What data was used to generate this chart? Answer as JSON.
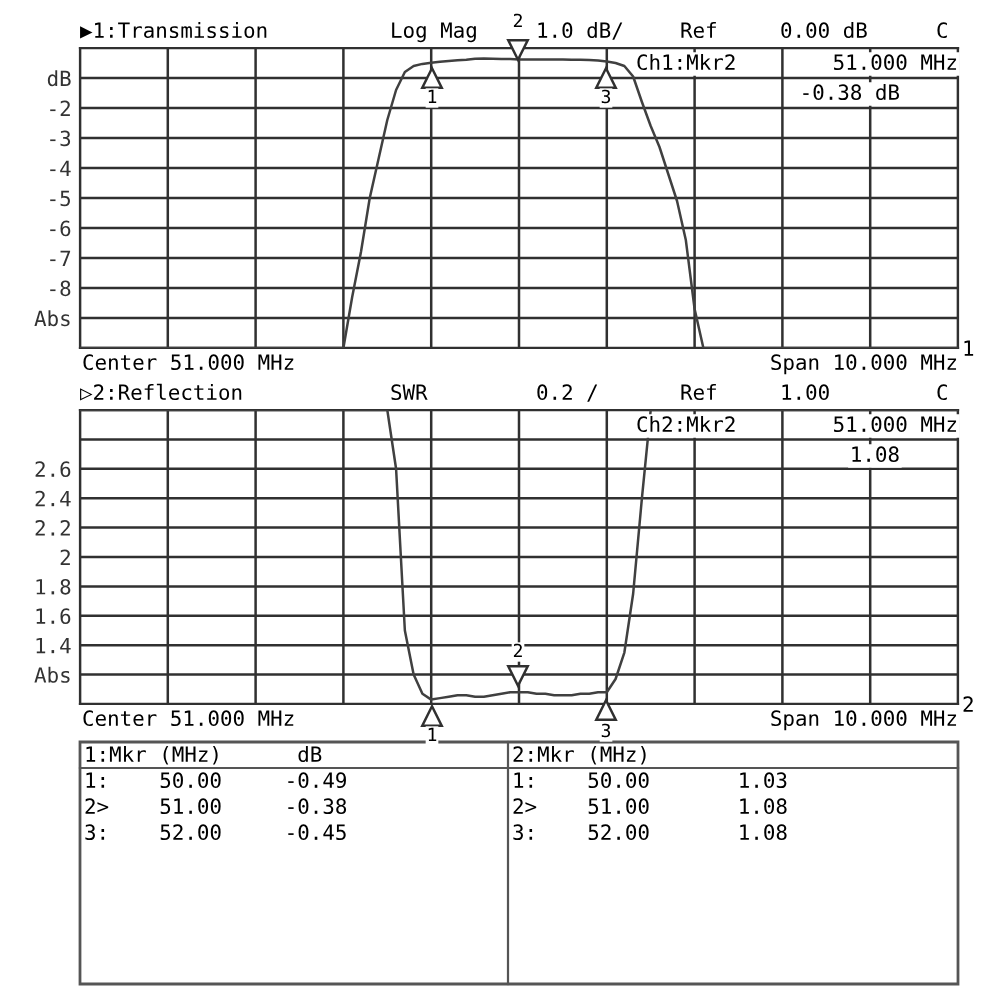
{
  "chart_data": [
    {
      "type": "line",
      "title": "▶1:Transmission",
      "categories": [
        null,
        null,
        null,
        null,
        null,
        null,
        null,
        null,
        null,
        null,
        null,
        null,
        null,
        null,
        null,
        null,
        null,
        null,
        null,
        null,
        null,
        null,
        null,
        null,
        null,
        null,
        null,
        null,
        null,
        null,
        null,
        null,
        null,
        null,
        null,
        null,
        null,
        null,
        null,
        null,
        null,
        null,
        null,
        null,
        null,
        null,
        null,
        null,
        null,
        null,
        null,
        null,
        null,
        null,
        null,
        null,
        null,
        null,
        null,
        null,
        null,
        null,
        null,
        null,
        null,
        null,
        null,
        null,
        null,
        null,
        null,
        null,
        null,
        null,
        null,
        null,
        null,
        null,
        null,
        null,
        null,
        null,
        null,
        null,
        null,
        null,
        null,
        null,
        null,
        null,
        null,
        null,
        null,
        null,
        null,
        null,
        null,
        null,
        null,
        null,
        null
      ],
      "series": [
        {
          "color": "#404040",
          "values": [
            -10,
            -10,
            -10,
            -10,
            -10,
            -10,
            -10,
            -10,
            -10,
            -10,
            -10,
            -10,
            -10,
            -10,
            -10,
            -10,
            -10,
            -10,
            -10,
            -10,
            -10,
            -10,
            -10,
            -10,
            -10,
            -10,
            -10,
            -10,
            -10,
            -10,
            -10,
            -8.3,
            -6.8,
            -5,
            -3.7,
            -2.4,
            -1.4,
            -0.8,
            -0.6,
            -0.53,
            -0.49,
            -0.46,
            -0.43,
            -0.41,
            -0.39,
            -0.36,
            -0.35,
            -0.36,
            -0.37,
            -0.37,
            -0.38,
            -0.38,
            -0.38,
            -0.38,
            -0.38,
            -0.38,
            -0.39,
            -0.39,
            -0.4,
            -0.42,
            -0.45,
            -0.5,
            -0.6,
            -0.95,
            -1.8,
            -2.6,
            -3.3,
            -4.2,
            -5.1,
            -6.4,
            -8.7,
            -10,
            -10,
            -10,
            -10,
            -10,
            -10,
            -10,
            -10,
            -10,
            -10,
            -10,
            -10,
            -10,
            -10,
            -10,
            -10,
            -10,
            -10,
            -10,
            -10,
            -10,
            -10,
            -10,
            -10,
            -10,
            -10,
            -10,
            -10,
            -10,
            -10
          ]
        }
      ],
      "ylim": [
        -10,
        0
      ],
      "yticks": [
        {
          "value": 0,
          "label": null
        },
        {
          "value": -1,
          "label": "dB"
        },
        -2,
        -3,
        -4,
        -5,
        -6,
        -7,
        -8,
        {
          "value": -9,
          "label": "Abs"
        },
        {
          "value": -10,
          "label": null
        }
      ],
      "tick_labels": "y",
      "grid": true,
      "line_style": "solid",
      "annotations": [
        "Log Mag",
        "1.0 dB/",
        "Ref",
        "0.00 dB",
        "C",
        "Ch1:Mkr2",
        "51.000 MHz",
        "-0.38 dB",
        "Center 51.000 MHz",
        "Span 10.000 MHz",
        "1",
        "1",
        "2",
        "3"
      ]
    },
    {
      "type": "line",
      "title": "▷2:Reflection",
      "categories": [
        null,
        null,
        null,
        null,
        null,
        null,
        null,
        null,
        null,
        null,
        null,
        null,
        null,
        null,
        null,
        null,
        null,
        null,
        null,
        null,
        null,
        null,
        null,
        null,
        null,
        null,
        null,
        null,
        null,
        null,
        null,
        null,
        null,
        null,
        null,
        null,
        null,
        null,
        null,
        null,
        null,
        null,
        null,
        null,
        null,
        null,
        null,
        null,
        null,
        null,
        null,
        null,
        null,
        null,
        null,
        null,
        null,
        null,
        null,
        null,
        null,
        null,
        null,
        null,
        null,
        null,
        null,
        null,
        null,
        null,
        null,
        null,
        null,
        null,
        null,
        null,
        null,
        null,
        null,
        null,
        null,
        null,
        null,
        null,
        null,
        null,
        null,
        null,
        null,
        null,
        null,
        null,
        null,
        null,
        null,
        null,
        null,
        null,
        null,
        null,
        null
      ],
      "series": [
        {
          "color": "#404040",
          "values": [
            3,
            3,
            3,
            3,
            3,
            3,
            3,
            3,
            3,
            3,
            3,
            3,
            3,
            3,
            3,
            3,
            3,
            3,
            3,
            3,
            3,
            3,
            3,
            3,
            3,
            3,
            3,
            3,
            3,
            3,
            3,
            3,
            3,
            3,
            3,
            3,
            2.6,
            1.5,
            1.2,
            1.07,
            1.03,
            1.04,
            1.05,
            1.06,
            1.06,
            1.05,
            1.05,
            1.06,
            1.07,
            1.08,
            1.08,
            1.08,
            1.07,
            1.07,
            1.06,
            1.06,
            1.06,
            1.07,
            1.07,
            1.08,
            1.08,
            1.17,
            1.35,
            1.75,
            2.4,
            3,
            3,
            3,
            3,
            3,
            3,
            3,
            3,
            3,
            3,
            3,
            3,
            3,
            3,
            3,
            3,
            3,
            3,
            3,
            3,
            3,
            3,
            3,
            3,
            3,
            3,
            3,
            3,
            3,
            3,
            3,
            3,
            3,
            3,
            3,
            3
          ]
        }
      ],
      "ylim": [
        1,
        3
      ],
      "yticks": [
        {
          "value": 1,
          "label": null
        },
        {
          "value": 1.2,
          "label": "Abs"
        },
        1.4,
        1.6,
        1.8,
        2,
        2.2,
        2.4,
        2.6,
        {
          "value": 2.8,
          "label": null
        },
        {
          "value": 3,
          "label": null
        }
      ],
      "tick_labels": "y",
      "grid": true,
      "line_style": "solid",
      "annotations": [
        "SWR",
        "0.2 /",
        "Ref",
        "1.00",
        "C",
        "Ch2:Mkr2",
        "51.000 MHz",
        "1.08",
        "Center 51.000 MHz",
        "Span 10.000 MHz",
        "2",
        "1",
        "2",
        "3",
        "1:Mkr (MHz)      dB",
        "1:    50.00     -0.49",
        "2>    51.00     -0.38",
        "3:    52.00     -0.45",
        "2:Mkr (MHz)",
        "1:    50.00       1.03",
        "2>    51.00       1.08",
        "3:    52.00       1.08"
      ]
    }
  ]
}
